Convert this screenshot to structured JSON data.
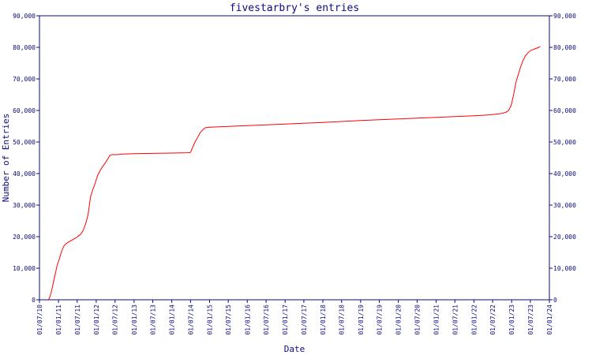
{
  "chart_data": {
    "type": "line",
    "title": "fivestarbry's entries",
    "xlabel": "Date",
    "ylabel": "Number of Entries",
    "ylim": [
      0,
      90000
    ],
    "yticks": [
      0,
      10000,
      20000,
      30000,
      40000,
      50000,
      60000,
      70000,
      80000,
      90000
    ],
    "ytick_labels": [
      "0",
      "10,000",
      "20,000",
      "30,000",
      "40,000",
      "50,000",
      "60,000",
      "70,000",
      "80,000",
      "90,000"
    ],
    "xlim": [
      "2010-07-01",
      "2024-01-01"
    ],
    "xticks": [
      "2010-07-01",
      "2011-01-01",
      "2011-07-01",
      "2012-01-01",
      "2012-07-01",
      "2013-01-01",
      "2013-07-01",
      "2014-01-01",
      "2014-07-01",
      "2015-01-01",
      "2015-07-01",
      "2016-01-01",
      "2016-07-01",
      "2017-01-01",
      "2017-07-01",
      "2018-01-01",
      "2018-07-01",
      "2019-01-01",
      "2019-07-01",
      "2020-01-01",
      "2020-07-01",
      "2021-01-01",
      "2021-07-01",
      "2022-01-01",
      "2022-07-01",
      "2023-01-01",
      "2023-07-01",
      "2024-01-01"
    ],
    "xtick_labels": [
      "01/07/10",
      "01/01/11",
      "01/07/11",
      "01/01/12",
      "01/07/12",
      "01/01/13",
      "01/07/13",
      "01/01/14",
      "01/07/14",
      "01/01/15",
      "01/07/15",
      "01/01/16",
      "01/07/16",
      "01/01/17",
      "01/07/17",
      "01/01/18",
      "01/07/18",
      "01/01/19",
      "01/07/19",
      "01/01/20",
      "01/07/20",
      "01/01/21",
      "01/07/21",
      "01/01/22",
      "01/07/22",
      "01/01/23",
      "01/07/23",
      "01/01/24"
    ],
    "grid": false,
    "series": [
      {
        "color": "#ff0000",
        "x": [
          "2010-09-26",
          "2010-10-11",
          "2010-11-03",
          "2010-11-26",
          "2010-12-20",
          "2011-01-05",
          "2011-01-28",
          "2011-02-21",
          "2011-03-16",
          "2011-04-09",
          "2011-05-02",
          "2011-05-26",
          "2011-06-18",
          "2011-07-12",
          "2011-08-04",
          "2011-08-28",
          "2011-09-20",
          "2011-10-14",
          "2011-11-06",
          "2011-11-30",
          "2011-12-23",
          "2012-01-05",
          "2012-01-16",
          "2012-02-09",
          "2012-03-03",
          "2012-03-27",
          "2012-04-19",
          "2012-05-13",
          "2012-06-05",
          "2012-06-29",
          "2012-07-22",
          "2012-08-15",
          "2012-09-07",
          "2012-10-01",
          "2013-01-01",
          "2014-01-01",
          "2014-06-01",
          "2014-07-01",
          "2014-07-24",
          "2014-08-17",
          "2014-09-09",
          "2014-10-03",
          "2014-10-26",
          "2014-11-19",
          "2015-01-01",
          "2016-01-01",
          "2017-01-01",
          "2018-01-01",
          "2019-01-01",
          "2020-01-01",
          "2021-01-01",
          "2022-01-01",
          "2022-06-01",
          "2022-09-15",
          "2022-10-17",
          "2022-11-10",
          "2022-12-03",
          "2022-12-27",
          "2023-01-20",
          "2023-02-12",
          "2023-03-08",
          "2023-03-31",
          "2023-04-24",
          "2023-05-17",
          "2023-06-10",
          "2023-07-03",
          "2023-07-27",
          "2023-08-19",
          "2023-09-12",
          "2023-10-05"
        ],
        "y": [
          0,
          1000,
          4000,
          7500,
          11000,
          12500,
          15000,
          17000,
          17800,
          18300,
          18700,
          19200,
          19600,
          20200,
          20800,
          22000,
          24000,
          27000,
          32500,
          35000,
          37000,
          38500,
          39500,
          41000,
          42200,
          43300,
          44500,
          45800,
          46000,
          46000,
          46000,
          46100,
          46200,
          46200,
          46300,
          46500,
          46600,
          46700,
          48500,
          50200,
          51500,
          53000,
          53800,
          54500,
          54700,
          55200,
          55700,
          56200,
          56800,
          57300,
          57800,
          58300,
          58600,
          59000,
          59200,
          59500,
          60000,
          61500,
          65000,
          69000,
          71500,
          74000,
          76000,
          77500,
          78300,
          79000,
          79300,
          79600,
          79900,
          80200
        ]
      }
    ]
  }
}
